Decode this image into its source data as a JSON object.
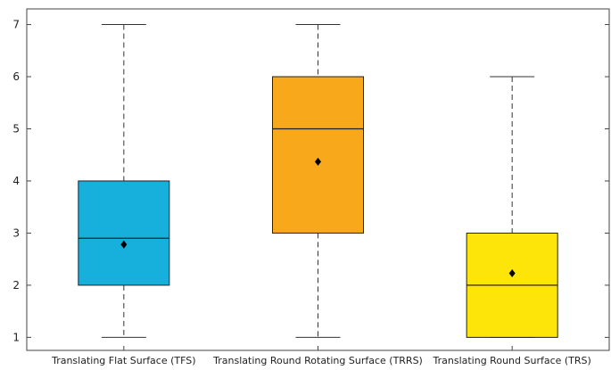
{
  "chart_data": {
    "type": "box",
    "categories": [
      "Translating Flat Surface (TFS)",
      "Translating Round Rotating Surface (TRRS)",
      "Translating Round Surface (TRS)"
    ],
    "series": [
      {
        "category": "Translating Flat Surface (TFS)",
        "min": 1,
        "q1": 2,
        "median": 2.9,
        "q3": 4,
        "max": 7,
        "mean": 2.78,
        "color": "#17b0dc"
      },
      {
        "category": "Translating Round Rotating Surface (TRRS)",
        "min": 1,
        "q1": 3,
        "median": 5,
        "q3": 6,
        "max": 7,
        "mean": 4.37,
        "color": "#f7a81b"
      },
      {
        "category": "Translating Round Surface (TRS)",
        "min": 1,
        "q1": 1,
        "median": 2,
        "q3": 3,
        "max": 6,
        "mean": 2.23,
        "color": "#fde50a"
      }
    ],
    "y_ticks": [
      1,
      2,
      3,
      4,
      5,
      6,
      7
    ],
    "ylim": [
      0.75,
      7.3
    ],
    "grid": false,
    "title": "",
    "xlabel": "",
    "ylabel": ""
  }
}
